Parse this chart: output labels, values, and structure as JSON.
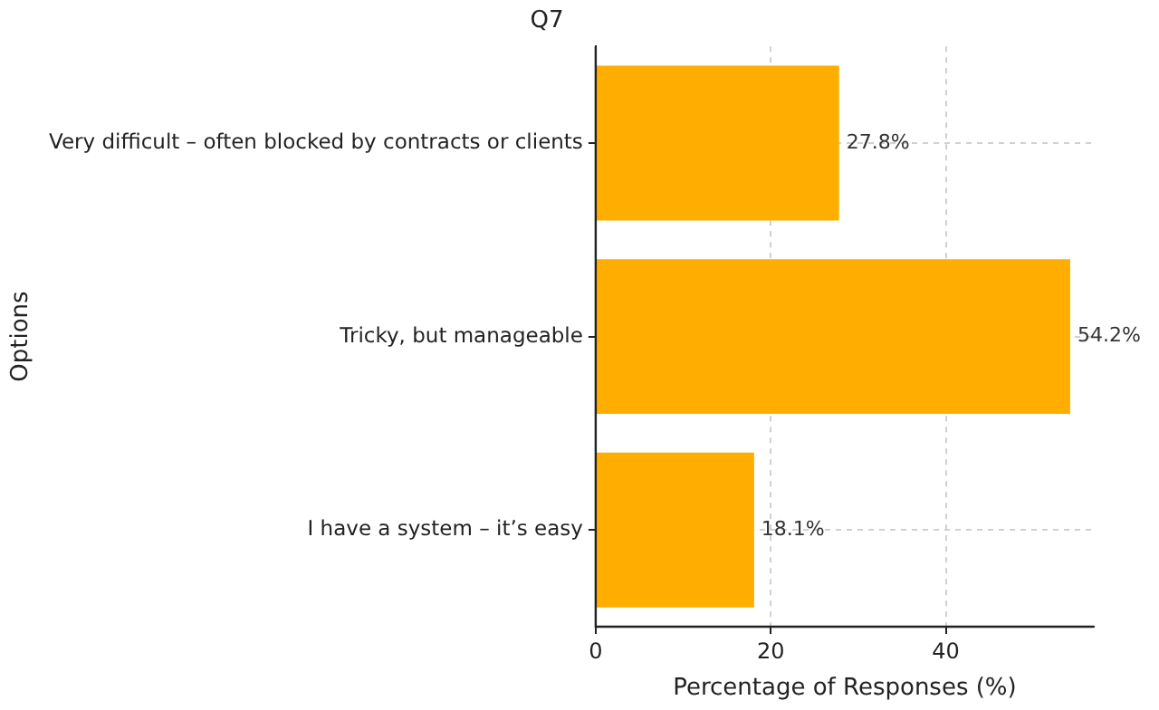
{
  "chart_data": {
    "type": "bar",
    "orientation": "horizontal",
    "title": "Q7",
    "xlabel": "Percentage of Responses (%)",
    "ylabel": "Options",
    "categories": [
      "Very difficult – often blocked by contracts or clients",
      "Tricky, but manageable",
      "I have a system – it’s easy"
    ],
    "values": [
      27.8,
      54.2,
      18.1
    ],
    "value_labels": [
      "27.8%",
      "54.2%",
      "18.1%"
    ],
    "color": "#ffae00",
    "xlim": [
      0,
      56.9
    ],
    "xticks": [
      0,
      20,
      40
    ],
    "grid": true
  }
}
